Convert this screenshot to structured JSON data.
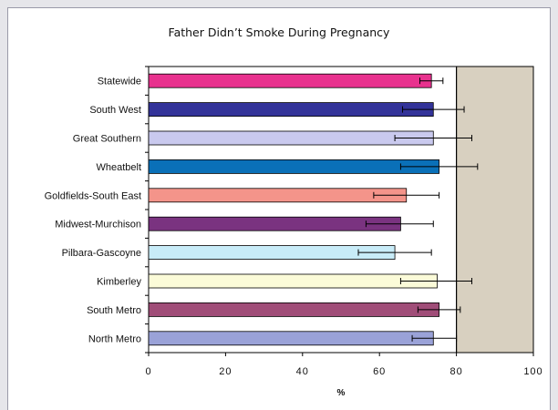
{
  "chart_data": {
    "type": "bar",
    "orientation": "horizontal",
    "title": "Father Didn’t Smoke During Pregnancy",
    "xlabel": "%",
    "ylabel": "",
    "xlim": [
      0,
      100
    ],
    "xticks": [
      "0",
      "20",
      "40",
      "60",
      "80",
      "100"
    ],
    "categories": [
      "Statewide",
      "South West",
      "Great Southern",
      "Wheatbelt",
      "Goldfields-South East",
      "Midwest-Murchison",
      "Pilbara-Gascoyne",
      "Kimberley",
      "South Metro",
      "North Metro"
    ],
    "values": [
      73.5,
      74,
      74,
      75.5,
      67,
      65.5,
      64,
      75,
      75.5,
      74
    ],
    "error_low": [
      70.5,
      66,
      64,
      65.5,
      58.5,
      56.5,
      54.5,
      65.5,
      70,
      68.5
    ],
    "error_high": [
      76.5,
      82,
      84,
      85.5,
      75.5,
      74,
      73.5,
      84,
      81,
      80
    ],
    "colors": [
      "#e8328e",
      "#333399",
      "#c9c9ee",
      "#0a70b8",
      "#f4948a",
      "#7a3380",
      "#c8ecf8",
      "#fbfbd8",
      "#a04d78",
      "#9aa2d8"
    ],
    "reference_line": 80,
    "shaded_region": [
      80,
      100
    ],
    "shaded_color": "#d8d0c0",
    "grid": false,
    "legend": "none"
  }
}
